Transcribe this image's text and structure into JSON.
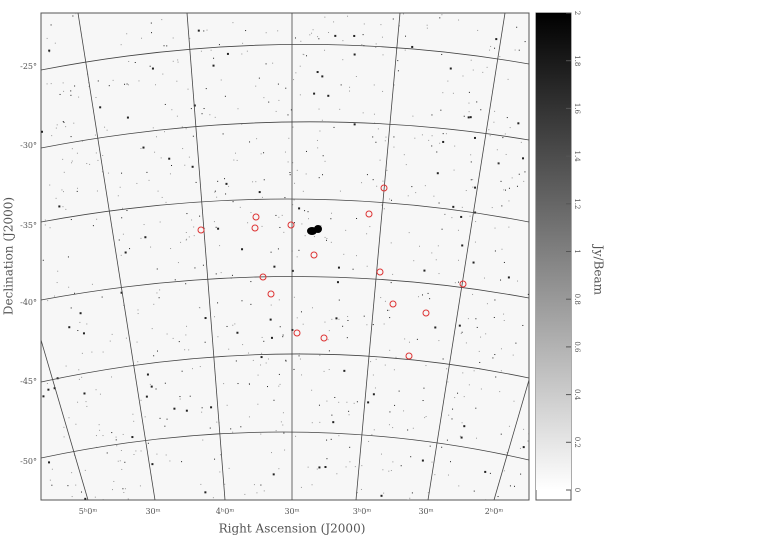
{
  "x_axis": {
    "label": "Right Ascension (J2000)",
    "ticks": [
      "5ʰ0ᵐ",
      "30ᵐ",
      "4ʰ0ᵐ",
      "30ᵐ",
      "3ʰ0ᵐ",
      "30ᵐ",
      "2ʰ0ᵐ"
    ]
  },
  "y_axis": {
    "label": "Declination (J2000)",
    "ticks": [
      "-25°",
      "-30°",
      "-35°",
      "-40°",
      "-45°",
      "-50°"
    ]
  },
  "colorbar": {
    "label": "Jy/Beam",
    "lim": [
      0,
      2
    ],
    "ticks": [
      0,
      0.2,
      0.4,
      0.6,
      0.8,
      1,
      1.2,
      1.4,
      1.6,
      1.8,
      2
    ]
  }
}
